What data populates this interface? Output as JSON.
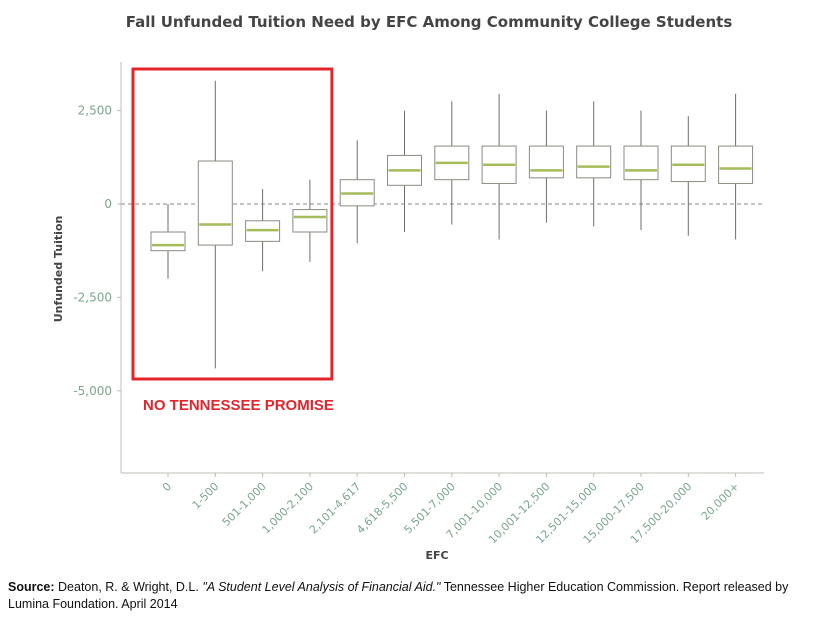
{
  "chart_data": {
    "type": "boxplot",
    "title": "Fall Unfunded Tuition Need by EFC Among Community College Students",
    "xlabel": "EFC",
    "ylabel": "Unfunded Tuition",
    "ylim": [
      -7200,
      3800
    ],
    "yticks": [
      2500,
      0,
      -2500,
      -5000
    ],
    "ytick_labels": [
      "2,500",
      "0",
      "-2,500",
      "-5,000"
    ],
    "reference_line": 0,
    "categories": [
      "0",
      "1-500",
      "501-1,000",
      "1,000-2,100",
      "2,101-4,617",
      "4,618-5,500",
      "5,501-7,000",
      "7,001-10,000",
      "10,001-12,500",
      "12,501-15,000",
      "15,000-17,500",
      "17,500-20,000",
      "20,000+"
    ],
    "boxes": [
      {
        "min": -2000,
        "q1": -1250,
        "median": -1100,
        "q3": -750,
        "max": 0
      },
      {
        "min": -4400,
        "q1": -1100,
        "median": -550,
        "q3": 1150,
        "max": 3300
      },
      {
        "min": -1800,
        "q1": -1000,
        "median": -700,
        "q3": -450,
        "max": 400
      },
      {
        "min": -1550,
        "q1": -750,
        "median": -350,
        "q3": -150,
        "max": 650
      },
      {
        "min": -1050,
        "q1": -50,
        "median": 280,
        "q3": 650,
        "max": 1700
      },
      {
        "min": -750,
        "q1": 500,
        "median": 900,
        "q3": 1300,
        "max": 2500
      },
      {
        "min": -550,
        "q1": 650,
        "median": 1100,
        "q3": 1550,
        "max": 2750
      },
      {
        "min": -950,
        "q1": 550,
        "median": 1050,
        "q3": 1550,
        "max": 2950
      },
      {
        "min": -500,
        "q1": 700,
        "median": 900,
        "q3": 1550,
        "max": 2500
      },
      {
        "min": -600,
        "q1": 700,
        "median": 1000,
        "q3": 1550,
        "max": 2750
      },
      {
        "min": -700,
        "q1": 650,
        "median": 900,
        "q3": 1550,
        "max": 2500
      },
      {
        "min": -850,
        "q1": 600,
        "median": 1050,
        "q3": 1550,
        "max": 2350
      },
      {
        "min": -950,
        "q1": 550,
        "median": 950,
        "q3": 1550,
        "max": 2950
      }
    ],
    "annotation": {
      "text": "NO TENNESSEE PROMISE",
      "spans_categories": [
        "0",
        "1-500",
        "501-1,000",
        "1,000-2,100"
      ]
    },
    "grid": false,
    "legend": "none"
  },
  "colors": {
    "box_stroke": "#8a8a80",
    "median": "#a4bc5a",
    "tick_text": "#7aa68e",
    "annotation": "#e3242b",
    "title_text": "#444444"
  },
  "source": {
    "label": "Source:",
    "authors": "Deaton, R. & Wright, D.L.",
    "work": "\"A Student Level Analysis of Financial Aid.\"",
    "rest": "Tennessee Higher Education Commission. Report released by Lumina Foundation. April 2014"
  }
}
